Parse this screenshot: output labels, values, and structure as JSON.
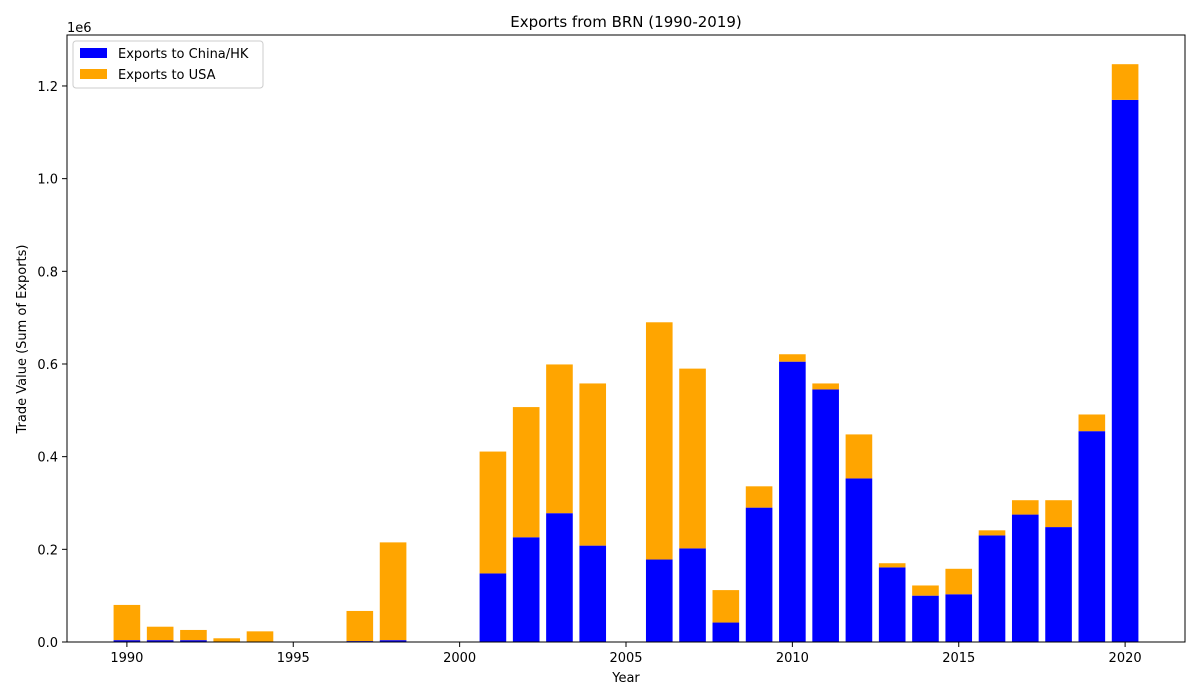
{
  "chart_data": {
    "type": "bar",
    "stacked": true,
    "title": "Exports from BRN (1990-2019)",
    "xlabel": "Year",
    "ylabel": "Trade Value (Sum of Exports)",
    "y_offset_label": "1e6",
    "xlim": [
      1988.2,
      2021.8
    ],
    "ylim": [
      0,
      1.31
    ],
    "x_ticks": [
      "1990",
      "1995",
      "2000",
      "2005",
      "2010",
      "2015",
      "2020"
    ],
    "y_ticks": [
      "0.0",
      "0.2",
      "0.4",
      "0.6",
      "0.8",
      "1.0",
      "1.2"
    ],
    "grid": false,
    "legend_position": "top-left",
    "x": [
      1990,
      1991,
      1992,
      1993,
      1994,
      1995,
      1996,
      1997,
      1998,
      1999,
      2000,
      2001,
      2002,
      2003,
      2004,
      2005,
      2006,
      2007,
      2008,
      2009,
      2010,
      2011,
      2012,
      2013,
      2014,
      2015,
      2016,
      2017,
      2018,
      2019,
      2020
    ],
    "series": [
      {
        "name": "Exports to China/HK",
        "color": "#0000ff",
        "values": [
          0.004,
          0.004,
          0.004,
          0.001,
          0.001,
          0,
          0,
          0.002,
          0.004,
          0,
          0,
          0.148,
          0.226,
          0.278,
          0.208,
          0,
          0.178,
          0.202,
          0.042,
          0.29,
          0.605,
          0.545,
          0.353,
          0.161,
          0.1,
          0.103,
          0.23,
          0.275,
          0.248,
          0.455,
          1.17
        ]
      },
      {
        "name": "Exports to USA",
        "color": "#ffa500",
        "values": [
          0.076,
          0.029,
          0.022,
          0.007,
          0.022,
          0,
          0,
          0.065,
          0.211,
          0,
          0,
          0.263,
          0.281,
          0.321,
          0.35,
          0,
          0.512,
          0.388,
          0.07,
          0.046,
          0.016,
          0.013,
          0.095,
          0.009,
          0.022,
          0.055,
          0.011,
          0.031,
          0.058,
          0.036,
          0.077
        ]
      }
    ]
  }
}
